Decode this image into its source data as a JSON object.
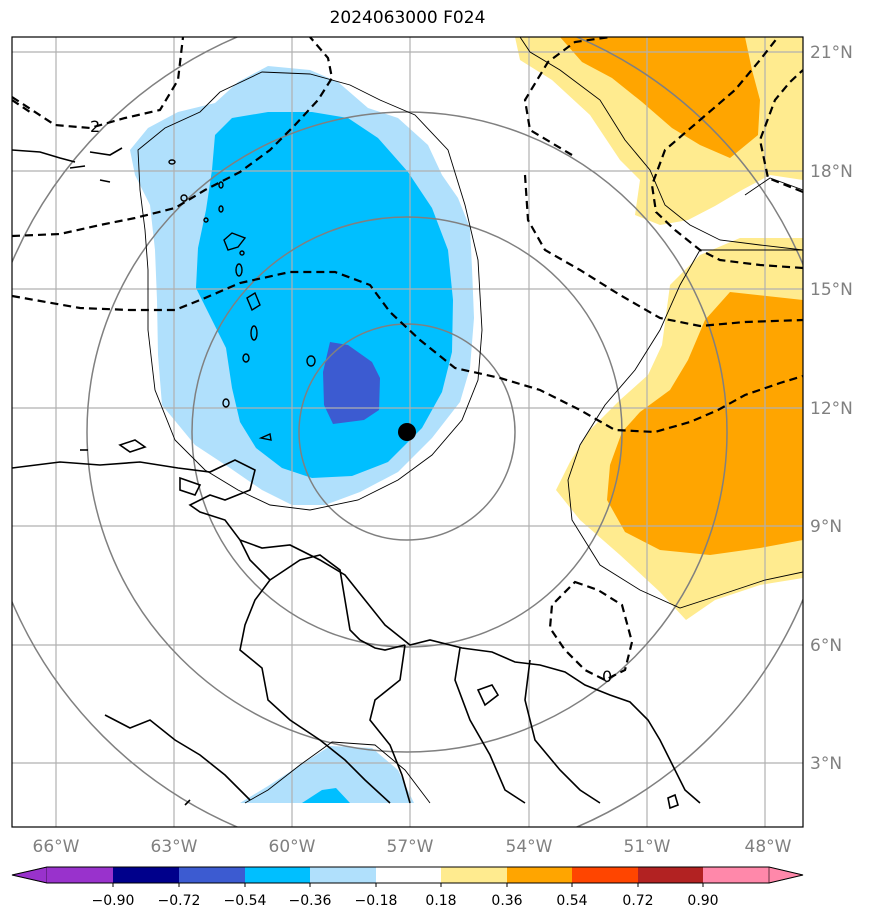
{
  "title": "2024063000 F024",
  "map": {
    "lon_ticks": [
      "66°W",
      "63°W",
      "60°W",
      "57°W",
      "54°W",
      "51°W",
      "48°W"
    ],
    "lat_ticks": [
      "21°N",
      "18°N",
      "15°N",
      "12°N",
      "9°N",
      "6°N",
      "3°N"
    ],
    "contour_labels": [
      "2",
      "0"
    ],
    "storm_center": {
      "lon": -57.0,
      "lat": 11.4
    },
    "colors": {
      "shading_neg_018_036": "#b0e0fc",
      "shading_neg_036_054": "#00bfff",
      "shading_neg_054_072": "#3c5bd1",
      "shading_pos_018_036": "#ffeb8f",
      "shading_pos_036_054": "#ffa500"
    }
  },
  "colorbar": {
    "labels": [
      "−0.90",
      "−0.72",
      "−0.54",
      "−0.36",
      "−0.18",
      "0.18",
      "0.36",
      "0.54",
      "0.72",
      "0.90"
    ],
    "colors": [
      "#9932cc",
      "#00008b",
      "#3c5bd1",
      "#00bfff",
      "#b0e0fc",
      "#ffffff",
      "#ffeb8f",
      "#ffa500",
      "#ff4500",
      "#b22222",
      "#ff88aa"
    ]
  }
}
